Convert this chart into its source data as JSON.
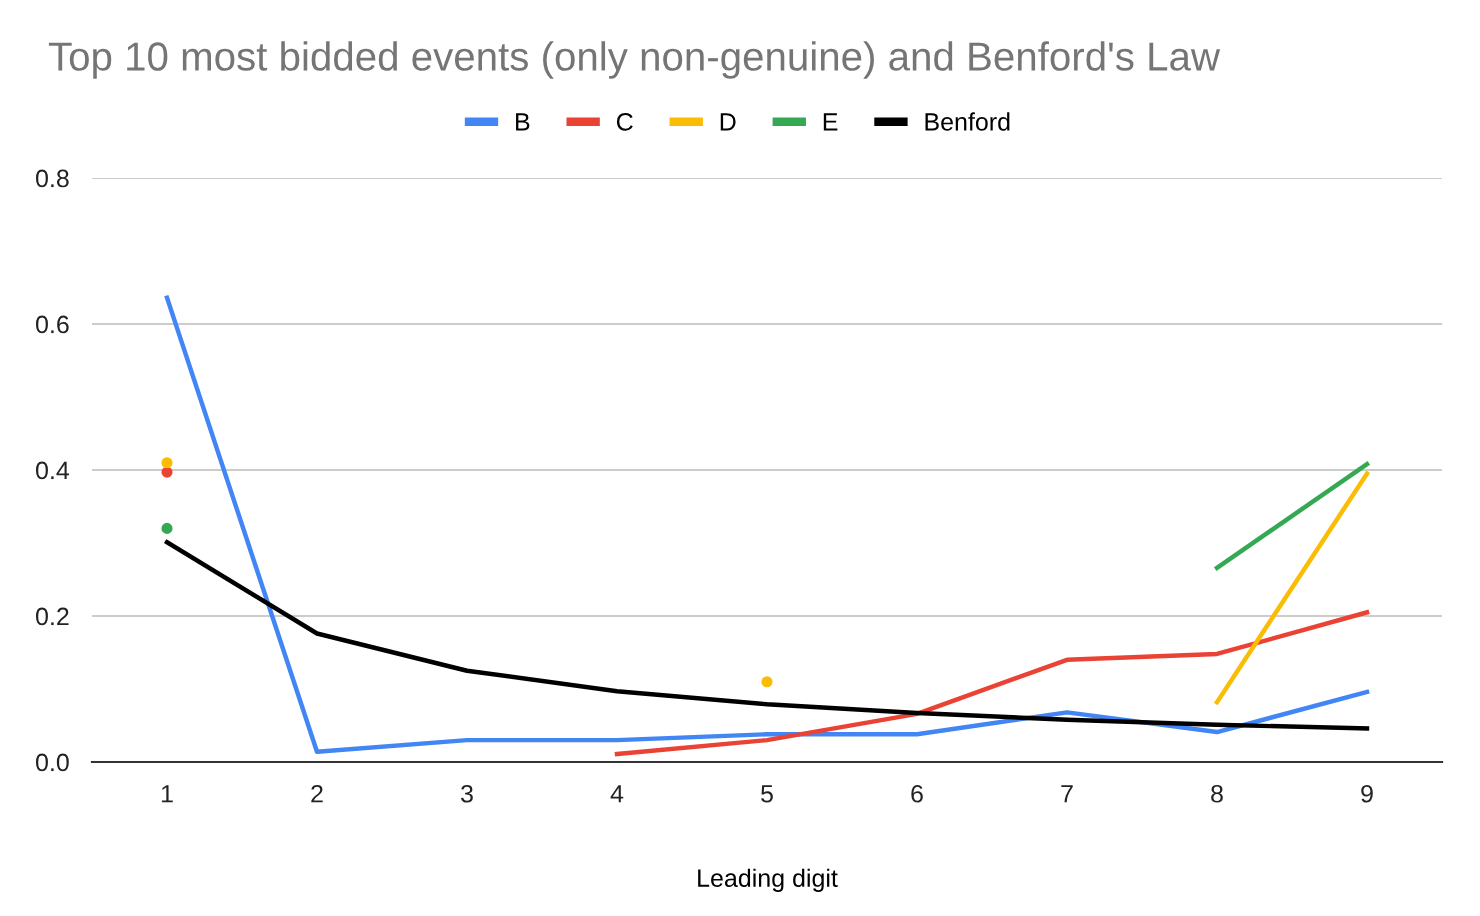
{
  "chart_data": {
    "type": "line",
    "title": "Top 10 most bidded events (only non-genuine) and Benford's Law",
    "xlabel": "Leading digit",
    "categories": [
      "1",
      "2",
      "3",
      "4",
      "5",
      "6",
      "7",
      "8",
      "9"
    ],
    "series": [
      {
        "name": "B",
        "color": "#4285f4",
        "values": [
          0.636,
          0.014,
          0.03,
          0.03,
          0.038,
          0.038,
          0.068,
          0.041,
          0.096
        ]
      },
      {
        "name": "C",
        "color": "#ea4335",
        "values": [
          0.397,
          null,
          null,
          0.011,
          0.03,
          0.066,
          0.14,
          0.148,
          0.205
        ]
      },
      {
        "name": "D",
        "color": "#fbbc04",
        "values": [
          0.41,
          null,
          null,
          null,
          0.11,
          null,
          null,
          0.082,
          0.395
        ]
      },
      {
        "name": "E",
        "color": "#34a853",
        "values": [
          0.32,
          null,
          null,
          null,
          null,
          null,
          null,
          0.266,
          0.408
        ]
      },
      {
        "name": "Benford",
        "color": "#000000",
        "values": [
          0.301,
          0.176,
          0.125,
          0.097,
          0.079,
          0.067,
          0.058,
          0.051,
          0.046
        ]
      }
    ],
    "ylim": [
      0,
      0.8
    ],
    "yticks": [
      {
        "value": 0,
        "label": "0.0"
      },
      0.2,
      0.4,
      0.6,
      0.8
    ],
    "grid": "y",
    "legend": "top"
  }
}
